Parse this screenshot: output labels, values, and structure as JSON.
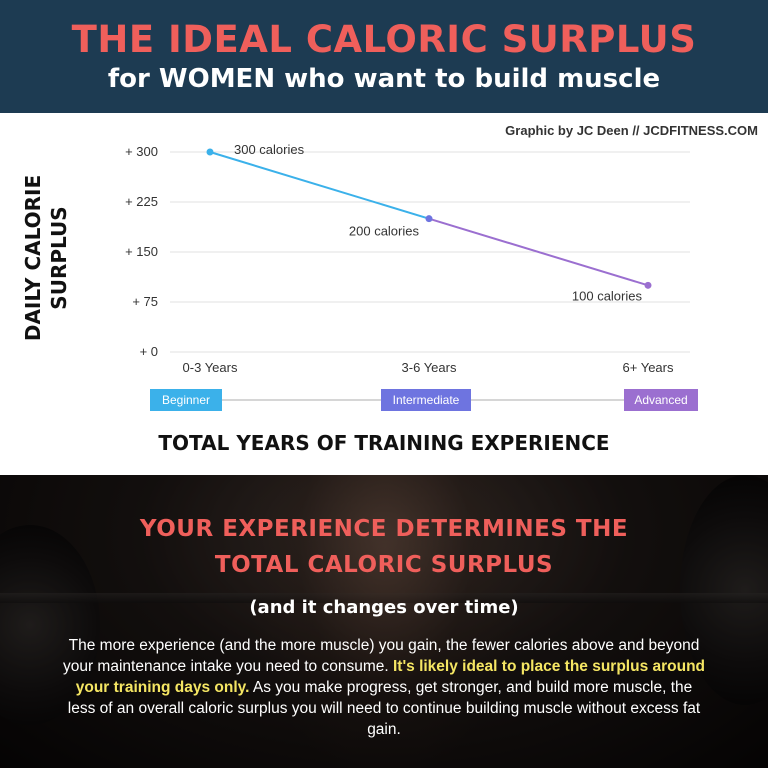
{
  "header": {
    "title": "THE IDEAL CALORIC SURPLUS",
    "subtitle": "for WOMEN who want to build muscle"
  },
  "credit": "Graphic by JC Deen // JCDFITNESS.COM",
  "colors": {
    "header_bg": "#1d3b52",
    "accent_red": "#ef5f5b",
    "beginner": "#3bb1ea",
    "intermediate": "#6e74e0",
    "advanced": "#9b6fd0",
    "highlight": "#f5e663"
  },
  "chart_data": {
    "type": "line",
    "ylabel": "DAILY CALORIE SURPLUS",
    "xlabel": "TOTAL YEARS OF TRAINING EXPERIENCE",
    "categories": [
      "0-3 Years",
      "3-6 Years",
      "6+ Years"
    ],
    "values": [
      300,
      200,
      100
    ],
    "data_labels": [
      "300 calories",
      "200 calories",
      "100 calories"
    ],
    "ylim": [
      0,
      300
    ],
    "yticks": [
      0,
      75,
      150,
      225,
      300
    ],
    "ytick_labels": [
      "+ 0",
      "+ 75",
      "+ 150",
      "+ 225",
      "+ 300"
    ],
    "grid": true,
    "levels": [
      "Beginner",
      "Intermediate",
      "Advanced"
    ]
  },
  "bottom": {
    "headline_line1": "YOUR EXPERIENCE DETERMINES THE",
    "headline_line2": "TOTAL CALORIC SURPLUS",
    "subheadline": "(and it changes over time)",
    "paragraph_before": "The more experience (and the more muscle) you gain, the fewer calories above and beyond your maintenance intake you need to consume. ",
    "paragraph_highlight": "It's likely ideal to place the surplus around your training days only.",
    "paragraph_after": " As you make progress, get stronger, and build more muscle, the less of an overall caloric surplus you will need to continue building muscle without excess fat gain."
  }
}
